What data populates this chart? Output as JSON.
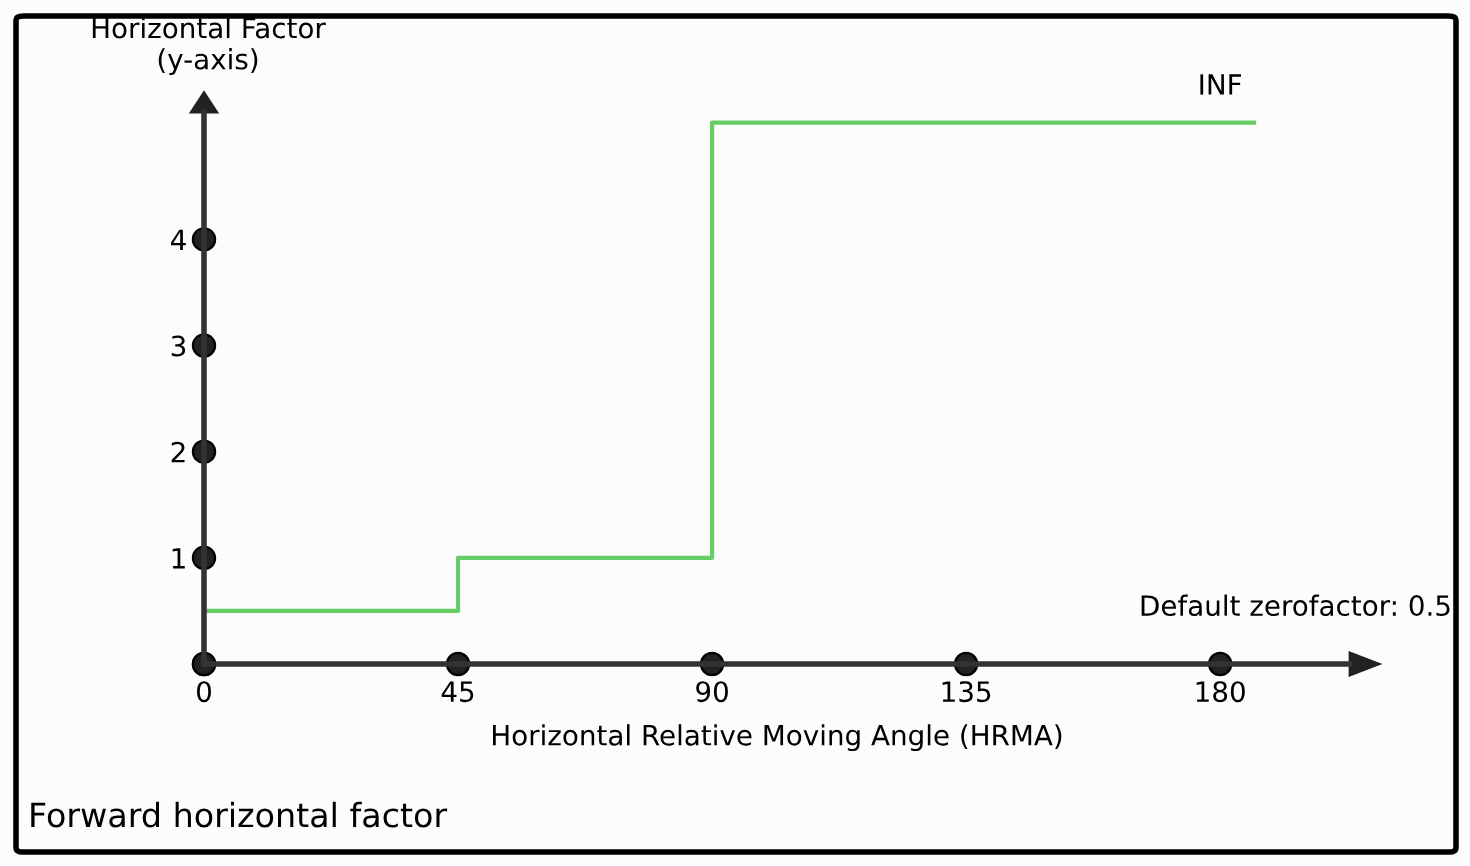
{
  "chart_data": {
    "type": "step",
    "title": "Forward horizontal factor",
    "xlabel": "Horizontal Relative Moving Angle (HRMA)",
    "ylabel": "Horizontal Factor\n(y-axis)",
    "x": [
      0,
      45,
      90,
      186
    ],
    "series": [
      {
        "color": "#66cc66",
        "values": [
          0.5,
          1,
          5.1,
          5.1
        ]
      }
    ],
    "xlim": [
      0,
      203
    ],
    "ylim": [
      0,
      5.2
    ],
    "xticks": [
      0,
      45,
      90,
      135,
      180
    ],
    "yticks": [
      {
        "value": 0,
        "label": null
      },
      1,
      2,
      3,
      4
    ],
    "marker": "none",
    "grid": false,
    "legend": false,
    "annotations": [
      {
        "text": "INF",
        "x": 180,
        "y": 5.1
      },
      "Default zerofactor: 0.5"
    ]
  }
}
